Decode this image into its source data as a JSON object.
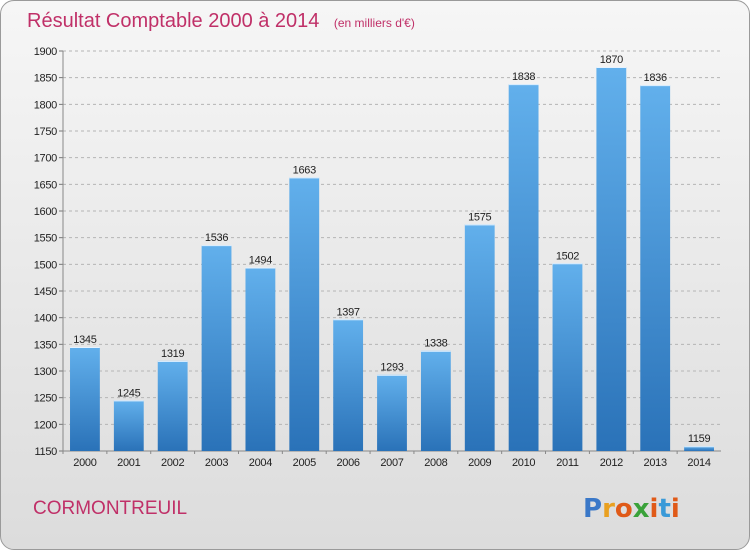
{
  "chart_data": {
    "type": "bar",
    "title": "Résultat Comptable 2000 à 2014",
    "subtitle": "(en milliers d'€)",
    "categories": [
      "2000",
      "2001",
      "2002",
      "2003",
      "2004",
      "2005",
      "2006",
      "2007",
      "2008",
      "2009",
      "2010",
      "2011",
      "2012",
      "2013",
      "2014"
    ],
    "values": [
      1345,
      1245,
      1319,
      1536,
      1494,
      1663,
      1397,
      1293,
      1338,
      1575,
      1838,
      1502,
      1870,
      1836,
      1159
    ],
    "ylim": [
      1150,
      1900
    ],
    "yticks": [
      1150,
      1200,
      1250,
      1300,
      1350,
      1400,
      1450,
      1500,
      1550,
      1600,
      1650,
      1700,
      1750,
      1800,
      1850,
      1900
    ],
    "grid": "horizontal-dashed",
    "bar_color": "#3d8fd6",
    "bar_color_light": "#62b0ec",
    "bar_color_dark": "#2a72b8"
  },
  "commune": "CORMONTREUIL",
  "logo": {
    "letters": [
      "P",
      "r",
      "o",
      "x",
      "i",
      "t",
      "i"
    ],
    "colors": [
      "#3a78c8",
      "#e9a020",
      "#e05a18",
      "#3aa23a",
      "#e05a18",
      "#3a9ad8",
      "#e05a18"
    ]
  }
}
